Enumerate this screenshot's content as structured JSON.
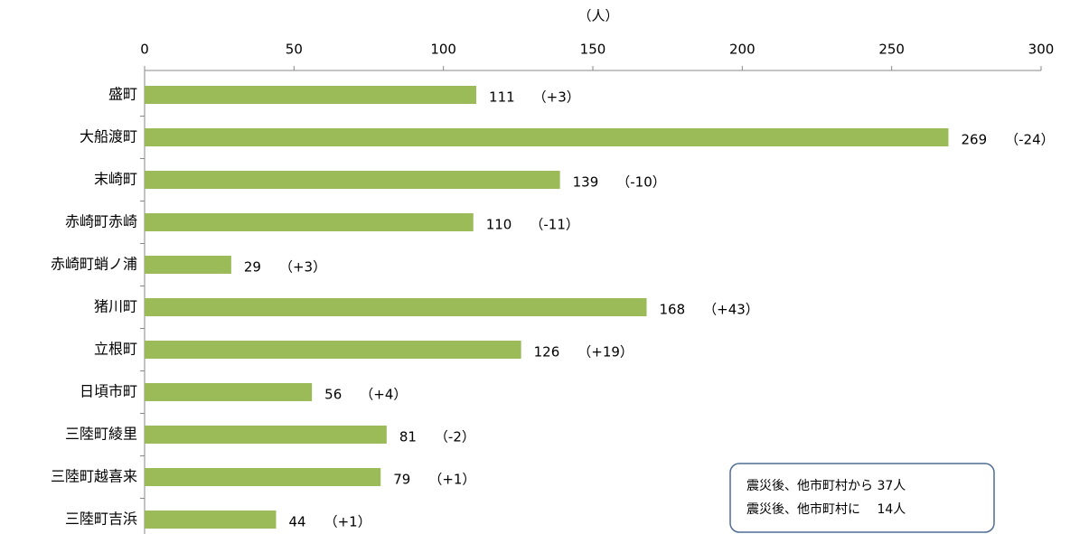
{
  "chart_data": {
    "type": "bar",
    "orientation": "horizontal",
    "x_unit_label": "（人）",
    "categories": [
      "盛町",
      "大船渡町",
      "末崎町",
      "赤崎町赤崎",
      "赤崎町蛸ノ浦",
      "猪川町",
      "立根町",
      "日頃市町",
      "三陸町綾里",
      "三陸町越喜来",
      "三陸町吉浜"
    ],
    "values": [
      111,
      269,
      139,
      110,
      29,
      168,
      126,
      56,
      81,
      79,
      44
    ],
    "changes": [
      "（+3）",
      "（-24）",
      "（-10）",
      "（-11）",
      "（+3）",
      "（+43）",
      "（+19）",
      "（+4）",
      "（-2）",
      "（+1）",
      "（+1）"
    ],
    "color": "#9bbb59",
    "xlim": [
      0,
      300
    ],
    "xticks": [
      0,
      50,
      100,
      150,
      200,
      250,
      300
    ],
    "note": [
      "震災後、他市町村から 37人",
      "震災後、他市町村に　 14人"
    ]
  }
}
